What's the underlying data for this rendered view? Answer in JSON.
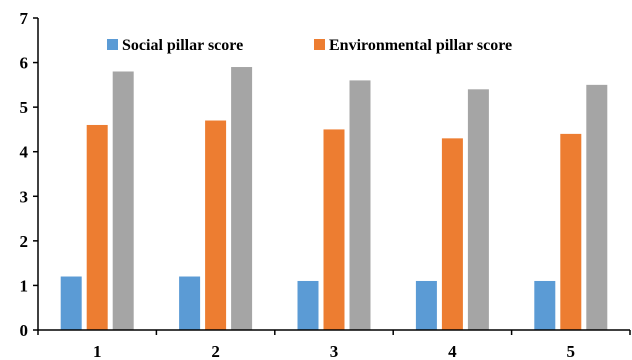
{
  "chart_data": {
    "type": "bar",
    "title": "",
    "xlabel": "",
    "ylabel": "",
    "categories": [
      "1",
      "2",
      "3",
      "4",
      "5"
    ],
    "ylim": [
      0,
      7
    ],
    "yticks": [
      "0",
      "1",
      "2",
      "3",
      "4",
      "5",
      "6",
      "7"
    ],
    "grid": false,
    "legend_position": "top",
    "series": [
      {
        "name": "Social pillar score",
        "color": "#5b9bd5",
        "values": [
          1.2,
          1.2,
          1.1,
          1.1,
          1.1
        ]
      },
      {
        "name": "Environmental pillar score",
        "color": "#ed7d31",
        "values": [
          4.6,
          4.7,
          4.5,
          4.3,
          4.4
        ]
      },
      {
        "color": "#a5a5a5",
        "values": [
          5.8,
          5.9,
          5.6,
          5.4,
          5.5
        ]
      }
    ]
  }
}
